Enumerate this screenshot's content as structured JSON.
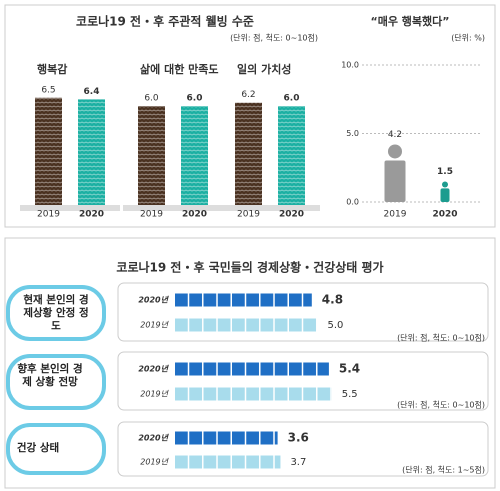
{
  "chart_data": [
    {
      "type": "bar",
      "title": "코로나19 전・후 주관적 웰빙 수준",
      "note": "(단위: 점, 척도: 0~10점)",
      "categories": [
        "행복감",
        "삶에 대한 만족도",
        "일의 가치성"
      ],
      "series": [
        {
          "name": "2019",
          "color": "#4b3221",
          "values": [
            6.5,
            6.0,
            6.2
          ],
          "value_labels": [
            "6.5",
            "6.0",
            "6.2"
          ]
        },
        {
          "name": "2020",
          "color": "#1cb0a3",
          "values": [
            6.4,
            6.0,
            6.0
          ],
          "value_labels": [
            "6.4",
            "6.0",
            "6.0"
          ]
        }
      ],
      "ylim": [
        0,
        10
      ]
    },
    {
      "type": "pictogram",
      "title": "“매우 행복했다”",
      "note": "(단위: %)",
      "categories": [
        "2019",
        "2020"
      ],
      "values": [
        4.2,
        1.5
      ],
      "colors": [
        "#9a9a9a",
        "#1c9c8f"
      ],
      "ylim": [
        0,
        10
      ],
      "yticks": [
        {
          "value": 0,
          "label": "0.0"
        },
        {
          "value": 5,
          "label": "5.0"
        },
        {
          "value": 10,
          "label": "10.0"
        }
      ],
      "grid": true
    },
    {
      "type": "hbar",
      "title": "코로나19 전・후 국민들의 경제상황・건강상태 평가",
      "categories": [
        "현재 본인의 경제상황 안정 정도",
        "향후 본인의 경제 상황 전망",
        "건강 상태"
      ],
      "notes": [
        "(단위: 점, 척도: 0~10점)",
        "(단위: 점, 척도: 0~10점)",
        "(단위: 점, 척도: 1~5점)"
      ],
      "series": [
        {
          "name": "2020년",
          "color": "#1f6fc5",
          "values": [
            4.8,
            5.4,
            3.6
          ]
        },
        {
          "name": "2019년",
          "color": "#a8dcec",
          "values": [
            5.0,
            5.5,
            3.7
          ],
          "value_labels": [
            "5.0",
            "5.5",
            "3.7"
          ]
        }
      ],
      "xlim": [
        0,
        10
      ]
    }
  ]
}
